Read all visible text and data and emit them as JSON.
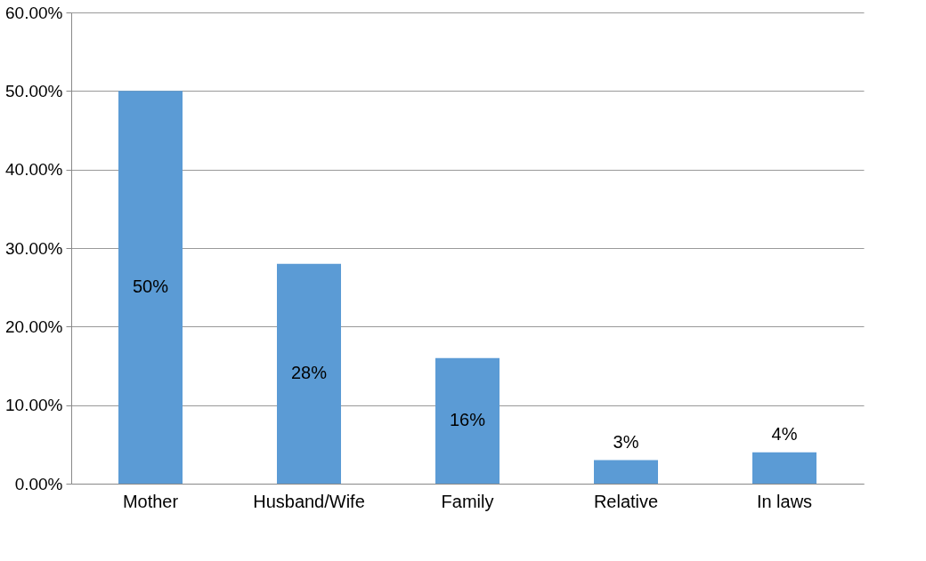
{
  "chart_data": {
    "type": "bar",
    "categories": [
      "Mother",
      "Husband/Wife",
      "Family",
      "Relative",
      "In laws"
    ],
    "values": [
      50,
      28,
      16,
      3,
      4
    ],
    "value_labels": [
      "50%",
      "28%",
      "16%",
      "3%",
      "4%"
    ],
    "color": "#5b9bd5",
    "ylim": [
      0,
      60
    ],
    "yticks": [
      {
        "value": 0,
        "label": "0.00%"
      },
      {
        "value": 10,
        "label": "10.00%"
      },
      {
        "value": 20,
        "label": "20.00%"
      },
      {
        "value": 30,
        "label": "30.00%"
      },
      {
        "value": 40,
        "label": "40.00%"
      },
      {
        "value": 50,
        "label": "50.00%"
      },
      {
        "value": 60,
        "label": "60.00%"
      }
    ],
    "grid": "y"
  }
}
